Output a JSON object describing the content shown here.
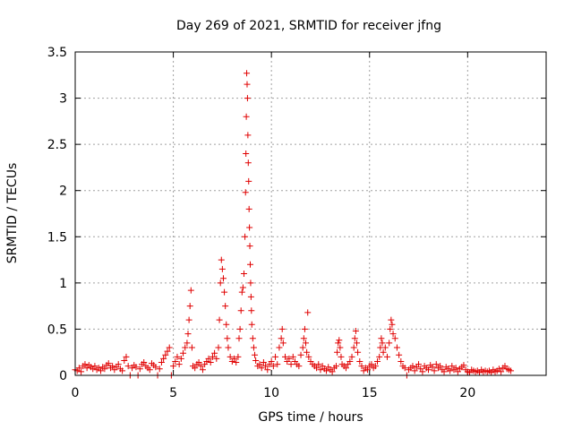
{
  "chart_data": {
    "type": "scatter",
    "title": "Day 269 of 2021, SRMTID for receiver jfng",
    "xlabel": "GPS time / hours",
    "ylabel": "SRMTID / TECUs",
    "xlim": [
      0,
      24
    ],
    "ylim": [
      0,
      3.5
    ],
    "x_ticks": [
      0,
      5,
      10,
      15,
      20
    ],
    "x_tick_labels": [
      "0",
      "5",
      "10",
      "15",
      "20"
    ],
    "y_ticks": [
      0,
      0.5,
      1,
      1.5,
      2,
      2.5,
      3,
      3.5
    ],
    "y_tick_labels": [
      "0",
      "0.5",
      "1",
      "1.5",
      "2",
      "2.5",
      "3",
      "3.5"
    ],
    "grid": true,
    "marker": "+",
    "color": "#e00000",
    "series": [
      {
        "name": "SRMTID",
        "points": [
          [
            0.0,
            0.06
          ],
          [
            0.1,
            0.05
          ],
          [
            0.2,
            0.08
          ],
          [
            0.3,
            0.04
          ],
          [
            0.4,
            0.1
          ],
          [
            0.5,
            0.12
          ],
          [
            0.6,
            0.08
          ],
          [
            0.7,
            0.11
          ],
          [
            0.8,
            0.09
          ],
          [
            0.9,
            0.07
          ],
          [
            1.0,
            0.1
          ],
          [
            1.1,
            0.06
          ],
          [
            1.2,
            0.08
          ],
          [
            1.3,
            0.05
          ],
          [
            1.4,
            0.09
          ],
          [
            1.5,
            0.07
          ],
          [
            1.6,
            0.11
          ],
          [
            1.7,
            0.13
          ],
          [
            1.8,
            0.08
          ],
          [
            1.9,
            0.1
          ],
          [
            2.0,
            0.06
          ],
          [
            2.1,
            0.09
          ],
          [
            2.2,
            0.12
          ],
          [
            2.3,
            0.07
          ],
          [
            2.4,
            0.05
          ],
          [
            2.5,
            0.16
          ],
          [
            2.6,
            0.2
          ],
          [
            2.7,
            0.1
          ],
          [
            2.8,
            0.0
          ],
          [
            2.9,
            0.08
          ],
          [
            3.0,
            0.11
          ],
          [
            3.1,
            0.09
          ],
          [
            3.2,
            0.0
          ],
          [
            3.3,
            0.07
          ],
          [
            3.4,
            0.12
          ],
          [
            3.5,
            0.14
          ],
          [
            3.6,
            0.1
          ],
          [
            3.7,
            0.08
          ],
          [
            3.8,
            0.06
          ],
          [
            3.9,
            0.13
          ],
          [
            4.0,
            0.11
          ],
          [
            4.1,
            0.09
          ],
          [
            4.2,
            0.0
          ],
          [
            4.3,
            0.07
          ],
          [
            4.4,
            0.14
          ],
          [
            4.5,
            0.18
          ],
          [
            4.6,
            0.22
          ],
          [
            4.7,
            0.26
          ],
          [
            4.8,
            0.3
          ],
          [
            4.9,
            0.0
          ],
          [
            5.0,
            0.1
          ],
          [
            5.1,
            0.15
          ],
          [
            5.2,
            0.2
          ],
          [
            5.3,
            0.12
          ],
          [
            5.4,
            0.18
          ],
          [
            5.5,
            0.24
          ],
          [
            5.6,
            0.3
          ],
          [
            5.7,
            0.35
          ],
          [
            5.75,
            0.45
          ],
          [
            5.8,
            0.6
          ],
          [
            5.85,
            0.75
          ],
          [
            5.9,
            0.92
          ],
          [
            5.95,
            0.3
          ],
          [
            6.0,
            0.1
          ],
          [
            6.1,
            0.08
          ],
          [
            6.2,
            0.12
          ],
          [
            6.3,
            0.14
          ],
          [
            6.4,
            0.1
          ],
          [
            6.5,
            0.06
          ],
          [
            6.6,
            0.12
          ],
          [
            6.7,
            0.15
          ],
          [
            6.8,
            0.18
          ],
          [
            6.9,
            0.14
          ],
          [
            7.0,
            0.2
          ],
          [
            7.1,
            0.24
          ],
          [
            7.2,
            0.18
          ],
          [
            7.3,
            0.3
          ],
          [
            7.35,
            0.6
          ],
          [
            7.4,
            1.0
          ],
          [
            7.45,
            1.25
          ],
          [
            7.5,
            1.15
          ],
          [
            7.55,
            1.05
          ],
          [
            7.6,
            0.9
          ],
          [
            7.65,
            0.75
          ],
          [
            7.7,
            0.55
          ],
          [
            7.75,
            0.4
          ],
          [
            7.8,
            0.3
          ],
          [
            7.9,
            0.2
          ],
          [
            8.0,
            0.15
          ],
          [
            8.1,
            0.18
          ],
          [
            8.2,
            0.14
          ],
          [
            8.3,
            0.2
          ],
          [
            8.35,
            0.4
          ],
          [
            8.4,
            0.5
          ],
          [
            8.45,
            0.7
          ],
          [
            8.5,
            0.9
          ],
          [
            8.55,
            0.95
          ],
          [
            8.6,
            1.1
          ],
          [
            8.65,
            1.5
          ],
          [
            8.68,
            1.98
          ],
          [
            8.7,
            2.4
          ],
          [
            8.72,
            2.8
          ],
          [
            8.74,
            3.27
          ],
          [
            8.76,
            3.15
          ],
          [
            8.78,
            3.0
          ],
          [
            8.8,
            2.6
          ],
          [
            8.82,
            2.3
          ],
          [
            8.84,
            2.1
          ],
          [
            8.86,
            1.8
          ],
          [
            8.88,
            1.6
          ],
          [
            8.9,
            1.4
          ],
          [
            8.92,
            1.2
          ],
          [
            8.94,
            1.0
          ],
          [
            8.96,
            0.85
          ],
          [
            8.98,
            0.7
          ],
          [
            9.0,
            0.55
          ],
          [
            9.05,
            0.4
          ],
          [
            9.1,
            0.3
          ],
          [
            9.15,
            0.22
          ],
          [
            9.2,
            0.16
          ],
          [
            9.3,
            0.1
          ],
          [
            9.4,
            0.12
          ],
          [
            9.5,
            0.08
          ],
          [
            9.6,
            0.14
          ],
          [
            9.7,
            0.1
          ],
          [
            9.8,
            0.06
          ],
          [
            9.9,
            0.12
          ],
          [
            10.0,
            0.15
          ],
          [
            10.1,
            0.1
          ],
          [
            10.2,
            0.2
          ],
          [
            10.3,
            0.12
          ],
          [
            10.4,
            0.3
          ],
          [
            10.5,
            0.4
          ],
          [
            10.55,
            0.5
          ],
          [
            10.6,
            0.35
          ],
          [
            10.7,
            0.2
          ],
          [
            10.8,
            0.15
          ],
          [
            10.9,
            0.18
          ],
          [
            11.0,
            0.12
          ],
          [
            11.1,
            0.2
          ],
          [
            11.2,
            0.15
          ],
          [
            11.3,
            0.12
          ],
          [
            11.4,
            0.1
          ],
          [
            11.5,
            0.22
          ],
          [
            11.6,
            0.3
          ],
          [
            11.65,
            0.4
          ],
          [
            11.7,
            0.5
          ],
          [
            11.75,
            0.35
          ],
          [
            11.8,
            0.25
          ],
          [
            11.85,
            0.68
          ],
          [
            11.9,
            0.2
          ],
          [
            12.0,
            0.15
          ],
          [
            12.1,
            0.12
          ],
          [
            12.2,
            0.1
          ],
          [
            12.3,
            0.08
          ],
          [
            12.4,
            0.12
          ],
          [
            12.5,
            0.06
          ],
          [
            12.6,
            0.1
          ],
          [
            12.7,
            0.07
          ],
          [
            12.8,
            0.05
          ],
          [
            12.9,
            0.09
          ],
          [
            13.0,
            0.06
          ],
          [
            13.1,
            0.04
          ],
          [
            13.2,
            0.08
          ],
          [
            13.3,
            0.1
          ],
          [
            13.35,
            0.25
          ],
          [
            13.4,
            0.35
          ],
          [
            13.45,
            0.38
          ],
          [
            13.5,
            0.3
          ],
          [
            13.55,
            0.2
          ],
          [
            13.6,
            0.12
          ],
          [
            13.7,
            0.1
          ],
          [
            13.8,
            0.08
          ],
          [
            13.9,
            0.12
          ],
          [
            14.0,
            0.15
          ],
          [
            14.1,
            0.2
          ],
          [
            14.2,
            0.3
          ],
          [
            14.25,
            0.4
          ],
          [
            14.3,
            0.48
          ],
          [
            14.35,
            0.35
          ],
          [
            14.4,
            0.25
          ],
          [
            14.5,
            0.15
          ],
          [
            14.6,
            0.1
          ],
          [
            14.7,
            0.05
          ],
          [
            14.8,
            0.08
          ],
          [
            14.9,
            0.06
          ],
          [
            15.0,
            0.1
          ],
          [
            15.1,
            0.12
          ],
          [
            15.2,
            0.08
          ],
          [
            15.3,
            0.1
          ],
          [
            15.4,
            0.15
          ],
          [
            15.5,
            0.2
          ],
          [
            15.55,
            0.3
          ],
          [
            15.6,
            0.4
          ],
          [
            15.65,
            0.35
          ],
          [
            15.7,
            0.25
          ],
          [
            15.8,
            0.3
          ],
          [
            15.9,
            0.2
          ],
          [
            16.0,
            0.35
          ],
          [
            16.05,
            0.5
          ],
          [
            16.1,
            0.6
          ],
          [
            16.15,
            0.55
          ],
          [
            16.2,
            0.45
          ],
          [
            16.3,
            0.4
          ],
          [
            16.4,
            0.3
          ],
          [
            16.5,
            0.22
          ],
          [
            16.6,
            0.15
          ],
          [
            16.7,
            0.1
          ],
          [
            16.8,
            0.08
          ],
          [
            16.9,
            0.0
          ],
          [
            17.0,
            0.06
          ],
          [
            17.1,
            0.08
          ],
          [
            17.2,
            0.1
          ],
          [
            17.3,
            0.05
          ],
          [
            17.4,
            0.09
          ],
          [
            17.5,
            0.12
          ],
          [
            17.6,
            0.07
          ],
          [
            17.7,
            0.04
          ],
          [
            17.8,
            0.1
          ],
          [
            17.9,
            0.08
          ],
          [
            18.0,
            0.06
          ],
          [
            18.1,
            0.11
          ],
          [
            18.2,
            0.09
          ],
          [
            18.3,
            0.05
          ],
          [
            18.4,
            0.12
          ],
          [
            18.5,
            0.08
          ],
          [
            18.6,
            0.1
          ],
          [
            18.7,
            0.06
          ],
          [
            18.8,
            0.04
          ],
          [
            18.9,
            0.09
          ],
          [
            19.0,
            0.07
          ],
          [
            19.1,
            0.05
          ],
          [
            19.2,
            0.1
          ],
          [
            19.3,
            0.06
          ],
          [
            19.4,
            0.08
          ],
          [
            19.5,
            0.04
          ],
          [
            19.6,
            0.07
          ],
          [
            19.7,
            0.09
          ],
          [
            19.8,
            0.11
          ],
          [
            19.9,
            0.06
          ],
          [
            20.0,
            0.04
          ],
          [
            20.1,
            0.03
          ],
          [
            20.2,
            0.06
          ],
          [
            20.3,
            0.05
          ],
          [
            20.4,
            0.04
          ],
          [
            20.5,
            0.05
          ],
          [
            20.6,
            0.03
          ],
          [
            20.7,
            0.06
          ],
          [
            20.8,
            0.04
          ],
          [
            20.9,
            0.05
          ],
          [
            21.0,
            0.04
          ],
          [
            21.1,
            0.05
          ],
          [
            21.2,
            0.03
          ],
          [
            21.3,
            0.06
          ],
          [
            21.4,
            0.04
          ],
          [
            21.5,
            0.05
          ],
          [
            21.6,
            0.07
          ],
          [
            21.7,
            0.04
          ],
          [
            21.8,
            0.08
          ],
          [
            21.9,
            0.1
          ],
          [
            22.0,
            0.07
          ],
          [
            22.1,
            0.06
          ],
          [
            22.2,
            0.05
          ]
        ]
      }
    ]
  }
}
